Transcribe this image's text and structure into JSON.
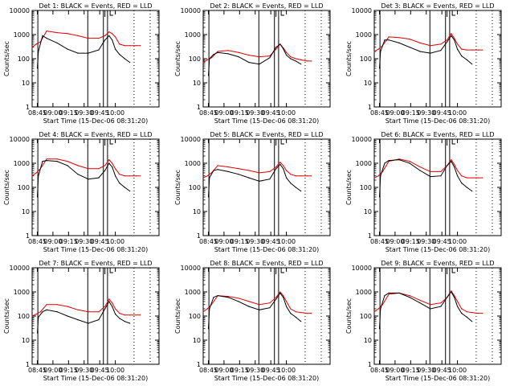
{
  "chart_data": [
    {
      "type": "line",
      "title": "Det 1: BLACK = Events, RED = LLD",
      "xlabel": "Start Time (15-Dec-06 08:31:20)",
      "ylabel": "Counts/sec",
      "xticks": [
        "08:45",
        "09:00",
        "09:15",
        "09:30",
        "09:45",
        "10:00"
      ],
      "ylim": [
        1,
        10000
      ],
      "yscale": "log",
      "yticks": [
        "1",
        "10",
        "100",
        "1000",
        "10000"
      ],
      "series": [
        {
          "name": "Events",
          "color": "#000000",
          "x": [
            41,
            42,
            46,
            50,
            60,
            70,
            80,
            90,
            100,
            106,
            110,
            113,
            116,
            120,
            125,
            130
          ],
          "y": [
            40,
            200,
            900,
            700,
            450,
            250,
            170,
            170,
            230,
            600,
            900,
            600,
            250,
            150,
            100,
            70
          ]
        },
        {
          "name": "LLD",
          "color": "#e00000",
          "x": [
            36,
            40,
            44,
            50,
            60,
            70,
            80,
            90,
            100,
            106,
            110,
            113,
            116,
            120,
            125,
            130,
            136,
            140
          ],
          "y": [
            300,
            400,
            500,
            1400,
            1200,
            1100,
            900,
            700,
            700,
            900,
            1300,
            1100,
            800,
            400,
            350,
            350,
            350,
            350
          ]
        }
      ]
    },
    {
      "type": "line",
      "title": "Det 2: BLACK = Events, RED = LLD",
      "xlabel": "Start Time (15-Dec-06 08:31:20)",
      "ylabel": "Counts/sec",
      "xticks": [
        "08:45",
        "09:00",
        "09:15",
        "09:30",
        "09:45",
        "10:00"
      ],
      "ylim": [
        1,
        10000
      ],
      "yscale": "log",
      "yticks": [
        "1",
        "10",
        "100",
        "1000",
        "10000"
      ],
      "series": [
        {
          "name": "Events",
          "color": "#000000",
          "x": [
            41,
            42,
            46,
            50,
            60,
            70,
            80,
            90,
            100,
            106,
            110,
            113,
            116,
            120,
            125,
            130
          ],
          "y": [
            20,
            100,
            150,
            180,
            160,
            120,
            70,
            60,
            110,
            300,
            400,
            260,
            140,
            100,
            80,
            60
          ]
        },
        {
          "name": "LLD",
          "color": "#e00000",
          "x": [
            36,
            40,
            44,
            50,
            60,
            70,
            80,
            90,
            100,
            106,
            110,
            113,
            116,
            120,
            125,
            130,
            136,
            140
          ],
          "y": [
            70,
            90,
            110,
            200,
            220,
            180,
            140,
            120,
            130,
            250,
            400,
            280,
            180,
            120,
            100,
            90,
            80,
            80
          ]
        }
      ]
    },
    {
      "type": "line",
      "title": "Det 3: BLACK = Events, RED = LLD",
      "xlabel": "Start Time (15-Dec-06 08:31:20)",
      "ylabel": "Counts/sec",
      "xticks": [
        "08:45",
        "09:00",
        "09:15",
        "09:30",
        "09:45",
        "10:00"
      ],
      "ylim": [
        1,
        10000
      ],
      "yscale": "log",
      "yticks": [
        "1",
        "10",
        "100",
        "1000",
        "10000"
      ],
      "series": [
        {
          "name": "Events",
          "color": "#000000",
          "x": [
            41,
            42,
            46,
            50,
            60,
            70,
            80,
            90,
            100,
            106,
            110,
            113,
            116,
            120,
            125,
            130
          ],
          "y": [
            40,
            200,
            600,
            600,
            450,
            300,
            200,
            170,
            220,
            500,
            900,
            600,
            250,
            130,
            90,
            60
          ]
        },
        {
          "name": "LLD",
          "color": "#e00000",
          "x": [
            36,
            40,
            44,
            50,
            60,
            70,
            80,
            90,
            100,
            106,
            110,
            113,
            116,
            120,
            125,
            130,
            136,
            140
          ],
          "y": [
            200,
            250,
            350,
            800,
            750,
            650,
            450,
            350,
            400,
            600,
            1100,
            700,
            400,
            250,
            230,
            230,
            230,
            230
          ]
        }
      ]
    },
    {
      "type": "line",
      "title": "Det 4: BLACK = Events, RED = LLD",
      "xlabel": "Start Time (15-Dec-06 08:31:20)",
      "ylabel": "Counts/sec",
      "xticks": [
        "08:45",
        "09:00",
        "09:15",
        "09:30",
        "09:45",
        "10:00"
      ],
      "ylim": [
        1,
        10000
      ],
      "yscale": "log",
      "yticks": [
        "1",
        "10",
        "100",
        "1000",
        "10000"
      ],
      "series": [
        {
          "name": "Events",
          "color": "#000000",
          "x": [
            41,
            42,
            46,
            50,
            60,
            70,
            80,
            90,
            100,
            106,
            110,
            113,
            116,
            120,
            125,
            130
          ],
          "y": [
            40,
            300,
            1200,
            1300,
            1200,
            800,
            350,
            220,
            250,
            500,
            1000,
            700,
            300,
            150,
            100,
            70
          ]
        },
        {
          "name": "LLD",
          "color": "#e00000",
          "x": [
            36,
            40,
            44,
            50,
            60,
            70,
            80,
            90,
            100,
            106,
            110,
            113,
            116,
            120,
            125,
            130,
            136,
            140
          ],
          "y": [
            300,
            400,
            600,
            1500,
            1500,
            1200,
            800,
            600,
            600,
            800,
            1400,
            1000,
            600,
            350,
            300,
            300,
            300,
            300
          ]
        }
      ]
    },
    {
      "type": "line",
      "title": "Det 5: BLACK = Events, RED = LLD",
      "xlabel": "Start Time (15-Dec-06 08:31:20)",
      "ylabel": "Counts/sec",
      "xticks": [
        "08:45",
        "09:00",
        "09:15",
        "09:30",
        "09:45",
        "10:00"
      ],
      "ylim": [
        1,
        10000
      ],
      "yscale": "log",
      "yticks": [
        "1",
        "10",
        "100",
        "1000",
        "10000"
      ],
      "series": [
        {
          "name": "Events",
          "color": "#000000",
          "x": [
            41,
            42,
            46,
            50,
            60,
            70,
            80,
            90,
            100,
            106,
            110,
            113,
            116,
            120,
            125,
            130
          ],
          "y": [
            40,
            250,
            500,
            550,
            450,
            350,
            250,
            180,
            220,
            600,
            900,
            600,
            250,
            150,
            100,
            70
          ]
        },
        {
          "name": "LLD",
          "color": "#e00000",
          "x": [
            36,
            40,
            44,
            50,
            60,
            70,
            80,
            90,
            100,
            106,
            110,
            113,
            116,
            120,
            125,
            130,
            136,
            140
          ],
          "y": [
            250,
            300,
            400,
            800,
            700,
            600,
            500,
            400,
            450,
            700,
            1100,
            800,
            500,
            350,
            300,
            300,
            300,
            300
          ]
        }
      ]
    },
    {
      "type": "line",
      "title": "Det 6: BLACK = Events, RED = LLD",
      "xlabel": "Start Time (15-Dec-06 08:31:20)",
      "ylabel": "Counts/sec",
      "xticks": [
        "08:45",
        "09:00",
        "09:15",
        "09:30",
        "09:45",
        "10:00"
      ],
      "ylim": [
        1,
        10000
      ],
      "yscale": "log",
      "yticks": [
        "1",
        "10",
        "100",
        "1000",
        "10000"
      ],
      "series": [
        {
          "name": "Events",
          "color": "#000000",
          "x": [
            41,
            42,
            46,
            50,
            60,
            70,
            80,
            90,
            100,
            106,
            110,
            113,
            116,
            120,
            125,
            130
          ],
          "y": [
            40,
            300,
            1000,
            1300,
            1400,
            1000,
            500,
            280,
            300,
            800,
            1200,
            700,
            300,
            150,
            100,
            70
          ]
        },
        {
          "name": "LLD",
          "color": "#e00000",
          "x": [
            36,
            40,
            44,
            50,
            60,
            70,
            80,
            90,
            100,
            106,
            110,
            113,
            116,
            120,
            125,
            130,
            136,
            140
          ],
          "y": [
            250,
            300,
            450,
            1200,
            1500,
            1200,
            700,
            450,
            450,
            800,
            1400,
            900,
            500,
            300,
            250,
            250,
            250,
            250
          ]
        }
      ]
    },
    {
      "type": "line",
      "title": "Det 7: BLACK = Events, RED = LLD",
      "xlabel": "Start Time (15-Dec-06 08:31:20)",
      "ylabel": "Counts/sec",
      "xticks": [
        "08:45",
        "09:00",
        "09:15",
        "09:30",
        "09:45",
        "10:00"
      ],
      "ylim": [
        1,
        10000
      ],
      "yscale": "log",
      "yticks": [
        "1",
        "10",
        "100",
        "1000",
        "10000"
      ],
      "series": [
        {
          "name": "Events",
          "color": "#000000",
          "x": [
            41,
            42,
            46,
            50,
            60,
            70,
            80,
            90,
            100,
            106,
            110,
            113,
            116,
            120,
            125,
            130
          ],
          "y": [
            20,
            90,
            150,
            180,
            150,
            100,
            70,
            50,
            70,
            200,
            400,
            250,
            120,
            80,
            60,
            50
          ]
        },
        {
          "name": "LLD",
          "color": "#e00000",
          "x": [
            36,
            40,
            44,
            50,
            60,
            70,
            80,
            90,
            100,
            106,
            110,
            113,
            116,
            120,
            125,
            130,
            136,
            140
          ],
          "y": [
            100,
            120,
            150,
            300,
            300,
            250,
            180,
            150,
            150,
            250,
            500,
            350,
            200,
            130,
            110,
            110,
            110,
            110
          ]
        }
      ]
    },
    {
      "type": "line",
      "title": "Det 8: BLACK = Events, RED = LLD",
      "xlabel": "Start Time (15-Dec-06 08:31:20)",
      "ylabel": "Counts/sec",
      "xticks": [
        "08:45",
        "09:00",
        "09:15",
        "09:30",
        "09:45",
        "10:00"
      ],
      "ylim": [
        1,
        10000
      ],
      "yscale": "log",
      "yticks": [
        "1",
        "10",
        "100",
        "1000",
        "10000"
      ],
      "series": [
        {
          "name": "Events",
          "color": "#000000",
          "x": [
            41,
            42,
            46,
            50,
            60,
            70,
            80,
            90,
            100,
            106,
            110,
            113,
            116,
            120,
            125,
            130
          ],
          "y": [
            30,
            200,
            600,
            700,
            600,
            400,
            250,
            180,
            220,
            500,
            900,
            600,
            250,
            130,
            90,
            60
          ]
        },
        {
          "name": "LLD",
          "color": "#e00000",
          "x": [
            36,
            40,
            44,
            50,
            60,
            70,
            80,
            90,
            100,
            106,
            110,
            113,
            116,
            120,
            125,
            130,
            136,
            140
          ],
          "y": [
            150,
            200,
            300,
            700,
            650,
            550,
            400,
            300,
            350,
            600,
            1000,
            700,
            400,
            200,
            150,
            140,
            130,
            130
          ]
        }
      ]
    },
    {
      "type": "line",
      "title": "Det 9: BLACK = Events, RED = LLD",
      "xlabel": "Start Time (15-Dec-06 08:31:20)",
      "ylabel": "Counts/sec",
      "xticks": [
        "08:45",
        "09:00",
        "09:15",
        "09:30",
        "09:45",
        "10:00"
      ],
      "ylim": [
        1,
        10000
      ],
      "yscale": "log",
      "yticks": [
        "1",
        "10",
        "100",
        "1000",
        "10000"
      ],
      "series": [
        {
          "name": "Events",
          "color": "#000000",
          "x": [
            41,
            42,
            46,
            50,
            60,
            70,
            80,
            90,
            100,
            106,
            110,
            113,
            116,
            120,
            125,
            130
          ],
          "y": [
            30,
            200,
            700,
            900,
            900,
            600,
            350,
            200,
            250,
            600,
            1000,
            600,
            250,
            130,
            90,
            60
          ]
        },
        {
          "name": "LLD",
          "color": "#e00000",
          "x": [
            36,
            40,
            44,
            50,
            60,
            70,
            80,
            90,
            100,
            106,
            110,
            113,
            116,
            120,
            125,
            130,
            136,
            140
          ],
          "y": [
            150,
            200,
            300,
            800,
            900,
            700,
            450,
            300,
            350,
            600,
            1100,
            700,
            400,
            200,
            150,
            140,
            130,
            130
          ]
        }
      ]
    }
  ]
}
